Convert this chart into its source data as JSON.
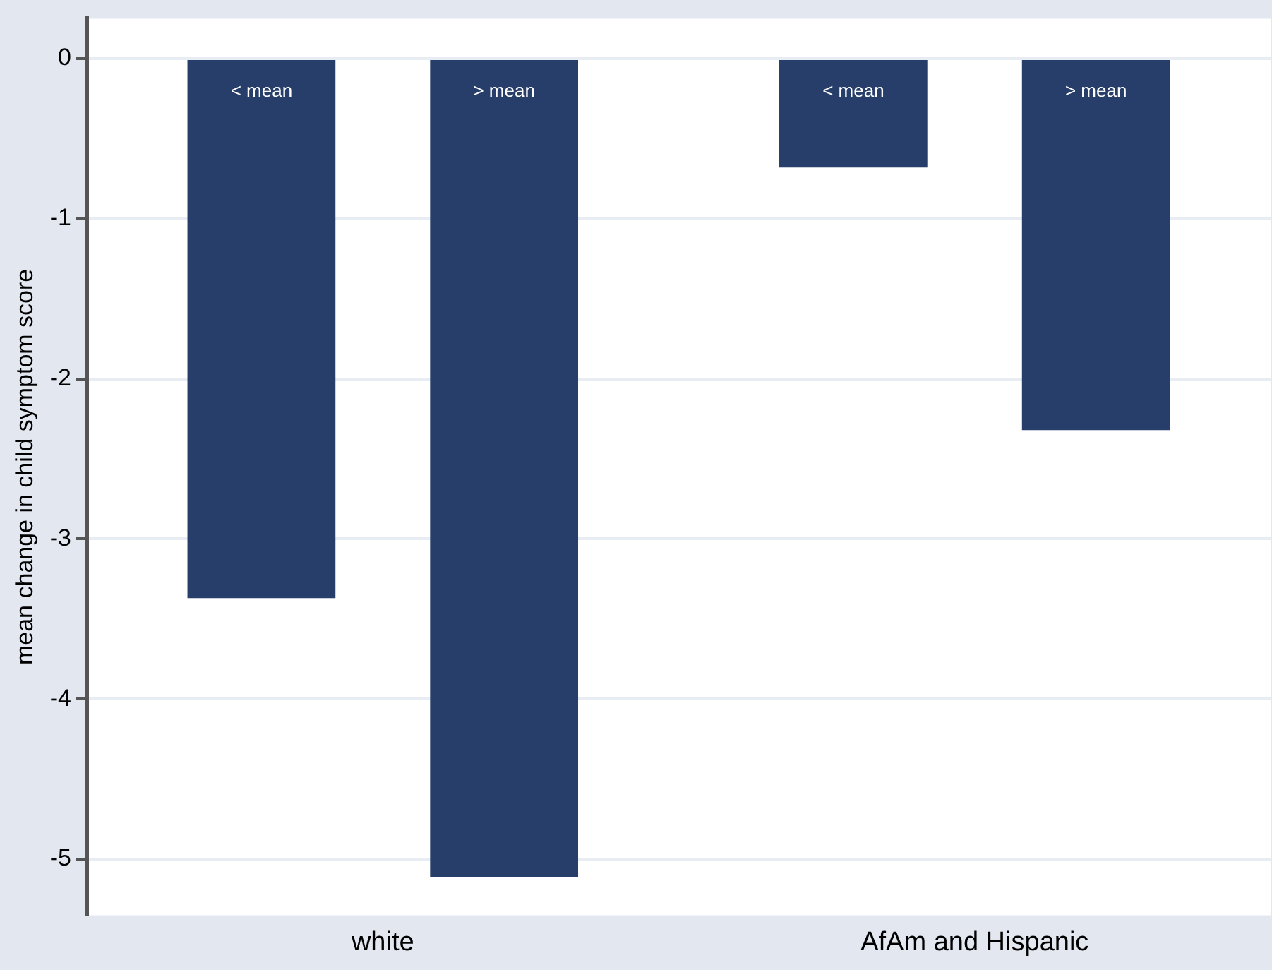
{
  "chart_data": {
    "type": "bar",
    "ylabel": "mean change in child symptom score",
    "categories": [
      "white",
      "AfAm and Hispanic"
    ],
    "series": [
      {
        "name": "< mean",
        "color": "#273e6b",
        "values": [
          -3.37,
          -0.68
        ]
      },
      {
        "name": "> mean",
        "color": "#273e6b",
        "values": [
          -5.11,
          -2.32
        ]
      }
    ],
    "ylim": [
      -5.35,
      0.25
    ],
    "yticks": [
      -5,
      -4,
      -3,
      -2,
      -1,
      0
    ],
    "grid": "y",
    "legend": false
  }
}
